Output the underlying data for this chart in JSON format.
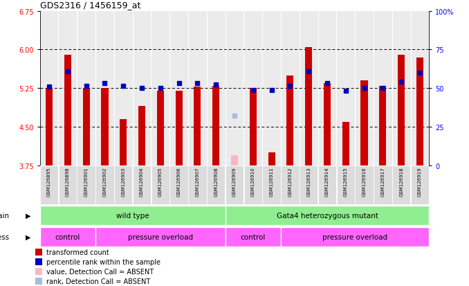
{
  "title": "GDS2316 / 1456159_at",
  "samples": [
    "GSM126895",
    "GSM126898",
    "GSM126901",
    "GSM126902",
    "GSM126903",
    "GSM126904",
    "GSM126905",
    "GSM126906",
    "GSM126907",
    "GSM126908",
    "GSM126909",
    "GSM126910",
    "GSM126911",
    "GSM126912",
    "GSM126913",
    "GSM126914",
    "GSM126915",
    "GSM126916",
    "GSM126917",
    "GSM126918",
    "GSM126919"
  ],
  "red_values": [
    5.25,
    5.9,
    5.25,
    5.25,
    4.65,
    4.9,
    5.2,
    5.2,
    5.28,
    5.3,
    3.95,
    5.25,
    4.0,
    5.5,
    6.05,
    5.35,
    4.6,
    5.4,
    5.3,
    5.9,
    5.85
  ],
  "blue_values": [
    5.28,
    5.58,
    5.3,
    5.35,
    5.3,
    5.25,
    5.25,
    5.35,
    5.35,
    5.32,
    4.72,
    5.22,
    5.22,
    5.3,
    5.58,
    5.35,
    5.2,
    5.25,
    5.25,
    5.38,
    5.55
  ],
  "absent_red": [
    false,
    false,
    false,
    false,
    false,
    false,
    false,
    false,
    false,
    false,
    true,
    false,
    false,
    false,
    false,
    false,
    false,
    false,
    false,
    false,
    false
  ],
  "absent_blue": [
    false,
    false,
    false,
    false,
    false,
    false,
    false,
    false,
    false,
    false,
    true,
    false,
    false,
    false,
    false,
    false,
    false,
    false,
    false,
    false,
    false
  ],
  "ylim_left": [
    3.75,
    6.75
  ],
  "ylim_right": [
    0,
    100
  ],
  "left_yticks": [
    3.75,
    4.5,
    5.25,
    6.0,
    6.75
  ],
  "right_yticks": [
    0,
    25,
    50,
    75,
    100
  ],
  "right_yticklabels": [
    "0",
    "25",
    "50",
    "75",
    "100%"
  ],
  "dotted_lines": [
    4.5,
    5.25,
    6.0
  ],
  "red_color": "#CC0000",
  "pink_color": "#FFB6C1",
  "blue_color": "#0000BB",
  "light_blue_color": "#AABBDD",
  "cell_bg": "#DCDCDC",
  "strain_color": "#90EE90",
  "stress_color": "#FF66FF",
  "strain_groups": [
    {
      "start": 0,
      "end": 10,
      "label": "wild type"
    },
    {
      "start": 10,
      "end": 21,
      "label": "Gata4 heterozygous mutant"
    }
  ],
  "stress_groups": [
    {
      "start": 0,
      "end": 3,
      "label": "control"
    },
    {
      "start": 3,
      "end": 10,
      "label": "pressure overload"
    },
    {
      "start": 10,
      "end": 13,
      "label": "control"
    },
    {
      "start": 13,
      "end": 21,
      "label": "pressure overload"
    }
  ],
  "legend_items": [
    {
      "color": "#CC0000",
      "label": "transformed count"
    },
    {
      "color": "#0000BB",
      "label": "percentile rank within the sample"
    },
    {
      "color": "#FFB6C1",
      "label": "value, Detection Call = ABSENT"
    },
    {
      "color": "#AABBDD",
      "label": "rank, Detection Call = ABSENT"
    }
  ]
}
